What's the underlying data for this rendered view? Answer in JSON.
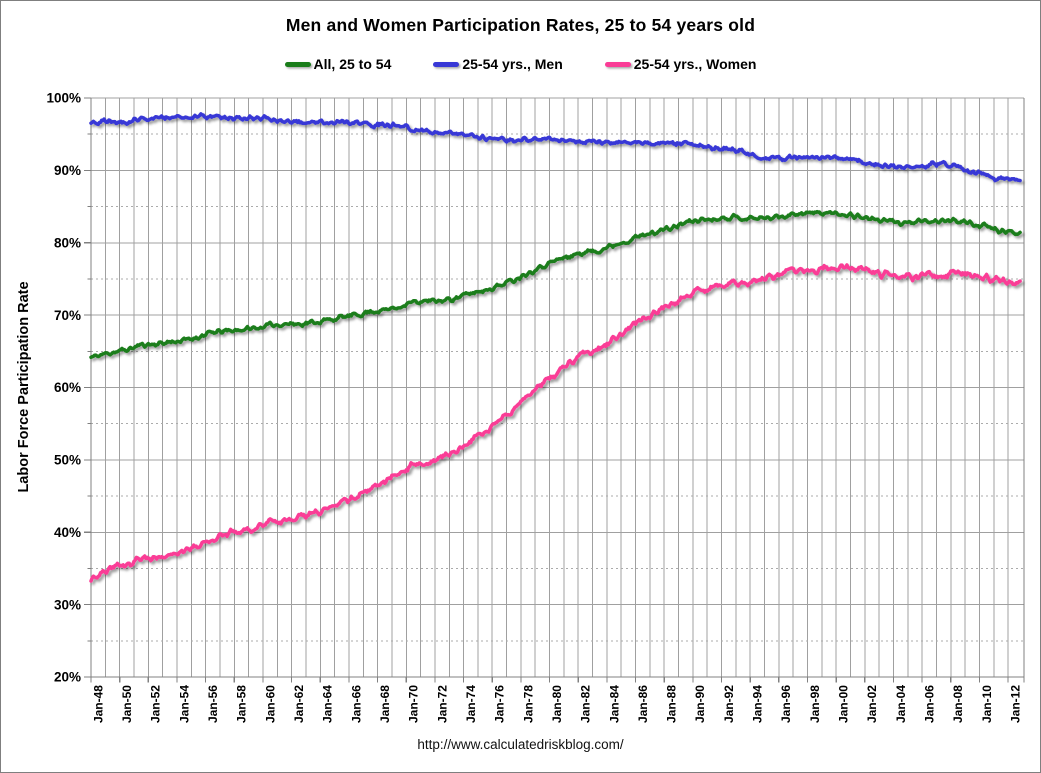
{
  "header": {
    "title": "Men and Women Participation Rates, 25 to 54 years old"
  },
  "legend": [
    {
      "label": "All, 25 to 54",
      "color": "#1A7D1A"
    },
    {
      "label": "25-54 yrs., Men",
      "color": "#3838D6"
    },
    {
      "label": "25-54 yrs., Women",
      "color": "#FA3C96"
    }
  ],
  "footer": {
    "url": "http://www.calculatedriskblog.com/"
  },
  "colors": {
    "grid_major": "#A0A0A0",
    "grid_minor": "#ABABAB",
    "axis": "#808080",
    "text": "#000000"
  },
  "chart_data": {
    "type": "line",
    "title": "Men and Women Participation Rates, 25 to 54 years old",
    "xlabel": "",
    "ylabel": "Labor Force Participation Rate",
    "ylim": [
      20,
      100
    ],
    "y_major_step": 10,
    "y_minor_step": 5,
    "y_tick_labels": [
      "100%",
      "90%",
      "80%",
      "70%",
      "60%",
      "50%",
      "40%",
      "30%",
      "20%"
    ],
    "x_tick_labels": [
      "Jan-48",
      "Jan-50",
      "Jan-52",
      "Jan-54",
      "Jan-56",
      "Jan-58",
      "Jan-60",
      "Jan-62",
      "Jan-64",
      "Jan-66",
      "Jan-68",
      "Jan-70",
      "Jan-72",
      "Jan-74",
      "Jan-76",
      "Jan-78",
      "Jan-80",
      "Jan-82",
      "Jan-84",
      "Jan-86",
      "Jan-88",
      "Jan-90",
      "Jan-92",
      "Jan-94",
      "Jan-96",
      "Jan-98",
      "Jan-00",
      "Jan-02",
      "Jan-04",
      "Jan-06",
      "Jan-08",
      "Jan-10",
      "Jan-12"
    ],
    "x_tick_years": [
      1948,
      1950,
      1952,
      1954,
      1956,
      1958,
      1960,
      1962,
      1964,
      1966,
      1968,
      1970,
      1972,
      1974,
      1976,
      1978,
      1980,
      1982,
      1984,
      1986,
      1988,
      1990,
      1992,
      1994,
      1996,
      1998,
      2000,
      2002,
      2004,
      2006,
      2008,
      2010,
      2012
    ],
    "x_range_years": [
      1948.0,
      2013.17
    ],
    "data_end": "Nov-2012",
    "resolution": "monthly line (annual values listed below)",
    "grid": {
      "vertical": "solid every 1 year",
      "horizontal_major": "solid every 10%",
      "horizontal_minor": "dashed every 5%"
    },
    "legend_position": "top",
    "years": [
      1948,
      1949,
      1950,
      1951,
      1952,
      1953,
      1954,
      1955,
      1956,
      1957,
      1958,
      1959,
      1960,
      1961,
      1962,
      1963,
      1964,
      1965,
      1966,
      1967,
      1968,
      1969,
      1970,
      1971,
      1972,
      1973,
      1974,
      1975,
      1976,
      1977,
      1978,
      1979,
      1980,
      1981,
      1982,
      1983,
      1984,
      1985,
      1986,
      1987,
      1988,
      1989,
      1990,
      1991,
      1992,
      1993,
      1994,
      1995,
      1996,
      1997,
      1998,
      1999,
      2000,
      2001,
      2002,
      2003,
      2004,
      2005,
      2006,
      2007,
      2008,
      2009,
      2010,
      2011,
      2012
    ],
    "series": [
      {
        "name": "All, 25 to 54",
        "color": "#1A7D1A",
        "values": [
          64.4,
          64.9,
          65.2,
          65.9,
          66.0,
          66.3,
          66.5,
          67.0,
          67.6,
          67.8,
          68.0,
          68.2,
          68.6,
          68.8,
          68.8,
          69.0,
          69.3,
          69.7,
          70.0,
          70.5,
          70.7,
          71.2,
          71.8,
          71.9,
          72.0,
          72.4,
          73.0,
          73.5,
          74.1,
          74.9,
          75.9,
          76.8,
          77.6,
          78.2,
          78.7,
          79.0,
          79.7,
          80.4,
          81.0,
          81.6,
          82.0,
          82.8,
          83.2,
          83.3,
          83.6,
          83.4,
          83.4,
          83.5,
          83.8,
          84.1,
          84.1,
          84.1,
          84.0,
          83.7,
          83.3,
          83.0,
          82.8,
          82.8,
          82.9,
          83.0,
          83.1,
          82.6,
          82.2,
          81.6,
          81.4
        ]
      },
      {
        "name": "25-54 yrs., Men",
        "color": "#3838D6",
        "values": [
          96.6,
          96.8,
          96.5,
          97.1,
          97.2,
          97.3,
          97.3,
          97.4,
          97.4,
          97.3,
          97.2,
          97.2,
          97.0,
          96.9,
          96.7,
          96.7,
          96.7,
          96.7,
          96.5,
          96.4,
          96.3,
          96.1,
          95.8,
          95.5,
          95.2,
          95.0,
          94.8,
          94.4,
          94.2,
          94.2,
          94.3,
          94.4,
          94.2,
          94.1,
          94.0,
          93.8,
          93.9,
          93.9,
          93.8,
          93.7,
          93.6,
          93.7,
          93.5,
          93.1,
          93.0,
          92.7,
          91.8,
          91.6,
          91.8,
          91.8,
          91.8,
          91.7,
          91.6,
          91.3,
          91.0,
          90.6,
          90.5,
          90.5,
          90.7,
          90.9,
          90.5,
          89.7,
          89.3,
          88.8,
          88.7
        ]
      },
      {
        "name": "25-54 yrs., Women",
        "color": "#FA3C96",
        "values": [
          34.0,
          35.0,
          35.7,
          36.4,
          36.6,
          36.8,
          37.4,
          38.2,
          39.2,
          39.8,
          40.2,
          40.6,
          41.3,
          41.8,
          42.1,
          42.7,
          43.3,
          44.1,
          45.0,
          46.1,
          46.9,
          48.1,
          49.3,
          49.8,
          50.2,
          51.3,
          52.6,
          54.0,
          55.5,
          56.9,
          58.7,
          60.5,
          62.1,
          63.6,
          64.7,
          65.4,
          66.7,
          68.2,
          69.4,
          70.6,
          71.5,
          72.8,
          73.6,
          73.8,
          74.3,
          74.3,
          74.9,
          75.3,
          75.8,
          76.3,
          76.3,
          76.5,
          76.7,
          76.4,
          75.9,
          75.6,
          75.3,
          75.3,
          75.5,
          75.4,
          75.8,
          75.6,
          75.2,
          74.7,
          74.5
        ]
      }
    ],
    "source_text": "http://www.calculatedriskblog.com/"
  }
}
